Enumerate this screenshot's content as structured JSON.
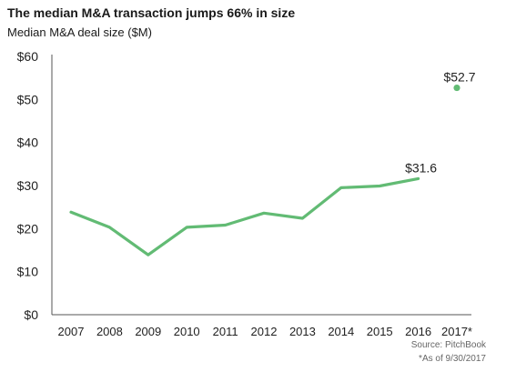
{
  "chart_data": {
    "type": "line",
    "title": "The median M&A transaction jumps 66% in size",
    "subtitle": "Median M&A deal size ($M)",
    "categories": [
      "2007",
      "2008",
      "2009",
      "2010",
      "2011",
      "2012",
      "2013",
      "2014",
      "2015",
      "2016",
      "2017*"
    ],
    "series": [
      {
        "values": [
          23.8,
          20.3,
          13.9,
          20.3,
          20.8,
          23.6,
          22.4,
          29.5,
          29.9,
          31.6,
          null
        ]
      }
    ],
    "highlight_point": {
      "category": "2017*",
      "value": 52.7
    },
    "data_labels": [
      {
        "category": "2016",
        "text": "$31.6"
      },
      {
        "category": "2017*",
        "text": "$52.7"
      }
    ],
    "y_ticks": [
      "$0",
      "$10",
      "$20",
      "$30",
      "$40",
      "$50",
      "$60"
    ],
    "ylim": [
      0,
      60
    ],
    "grid": false,
    "colors": {
      "line": "#62bb74",
      "axis": "#555555"
    }
  },
  "footnotes": {
    "source": "Source: PitchBook",
    "as_of": "*As of 9/30/2017"
  }
}
